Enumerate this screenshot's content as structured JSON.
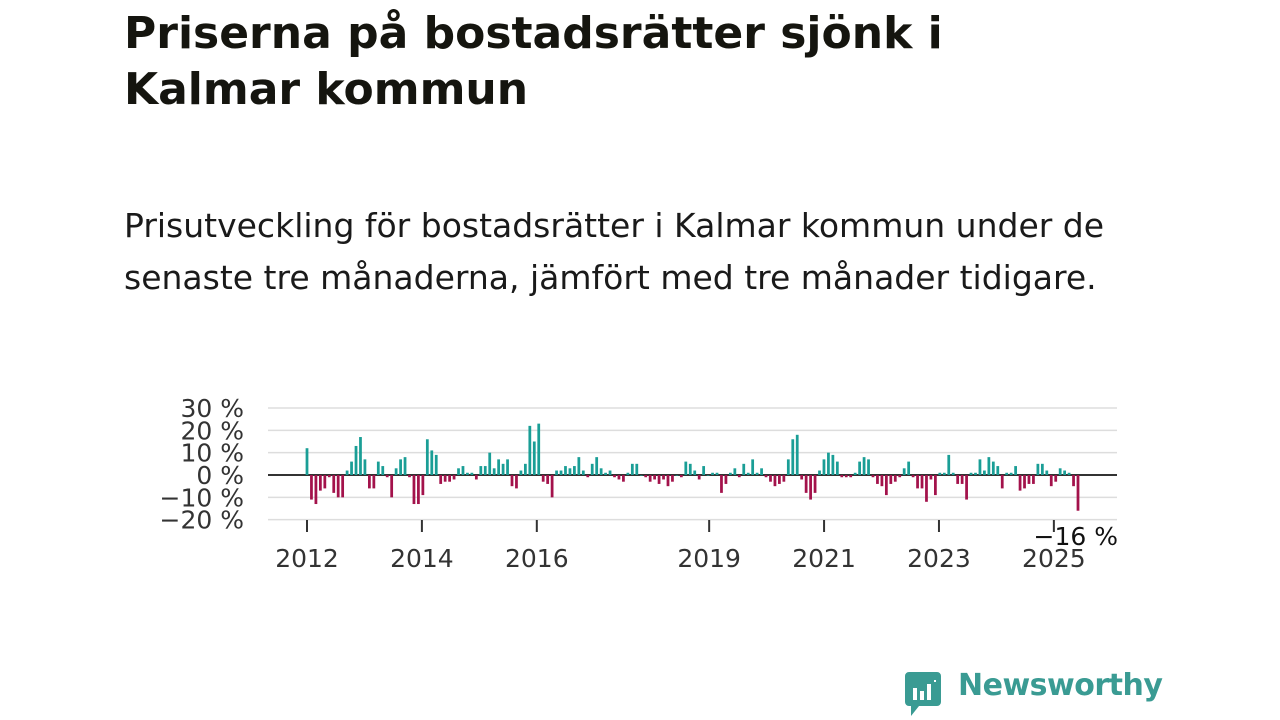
{
  "title": "Priserna på bostadsrätter sjönk i Kalmar kommun",
  "subtitle": "Prisutveckling för bostadsrätter i Kalmar kommun under de senaste tre månaderna, jämfört med tre månader tidigare.",
  "brand": {
    "name": "Newsworthy",
    "color": "#3a9b93",
    "icon": "newsworthy-logo-icon"
  },
  "colors": {
    "positive": "#1a9e96",
    "negative": "#a3124b",
    "grid": "#dddddd",
    "axis": "#333333"
  },
  "chart_data": {
    "type": "bar",
    "ylim": [
      -20,
      30
    ],
    "yticks": [
      30,
      20,
      10,
      0,
      -10,
      -20
    ],
    "ytick_labels": [
      "30 %",
      "20 %",
      "10 %",
      "0 %",
      "−10 %",
      "−20 %"
    ],
    "xtick_labels": [
      "2012",
      "2014",
      "2016",
      "2019",
      "2021",
      "2023",
      "2025"
    ],
    "xtick_positions": [
      2012.0,
      2014.0,
      2016.0,
      2019.0,
      2021.0,
      2023.0,
      2025.0
    ],
    "x_start": 2012.0,
    "x_end": 2025.42,
    "last_value_label": "−16 %",
    "values": [
      12,
      -11,
      -13,
      -7,
      -6,
      -1,
      -8,
      -10,
      -10,
      2,
      6,
      13,
      17,
      7,
      -6,
      -6,
      6,
      4,
      -1,
      -10,
      3,
      7,
      8,
      -1,
      -13,
      -13,
      -9,
      16,
      11,
      9,
      -4,
      -3,
      -3,
      -2,
      3,
      4,
      1,
      1,
      -2,
      4,
      4,
      10,
      3,
      7,
      5,
      7,
      -5,
      -6,
      2,
      5,
      22,
      15,
      23,
      -3,
      -4,
      -10,
      2,
      2,
      4,
      3,
      4,
      8,
      2,
      -1,
      5,
      8,
      3,
      1,
      2,
      -1,
      -2,
      -3,
      1,
      5,
      5,
      0,
      -1,
      -3,
      -2,
      -4,
      -2,
      -5,
      -3,
      0,
      -1,
      6,
      5,
      2,
      -2,
      4,
      0,
      1,
      1,
      -8,
      -4,
      1,
      3,
      -1,
      5,
      1,
      7,
      1,
      3,
      -1,
      -3,
      -5,
      -4,
      -3,
      7,
      16,
      18,
      -2,
      -8,
      -11,
      -8,
      2,
      7,
      10,
      9,
      6,
      -1,
      -1,
      -1,
      1,
      6,
      8,
      7,
      -1,
      -4,
      -5,
      -9,
      -4,
      -3,
      -1,
      3,
      6,
      -1,
      -6,
      -6,
      -12,
      -2,
      -9,
      1,
      1,
      9,
      1,
      -4,
      -4,
      -11,
      1,
      1,
      7,
      2,
      8,
      6,
      4,
      -6,
      1,
      1,
      4,
      -7,
      -6,
      -4,
      -4,
      5,
      5,
      2,
      -5,
      -3,
      3,
      2,
      1,
      -5,
      -16
    ]
  }
}
